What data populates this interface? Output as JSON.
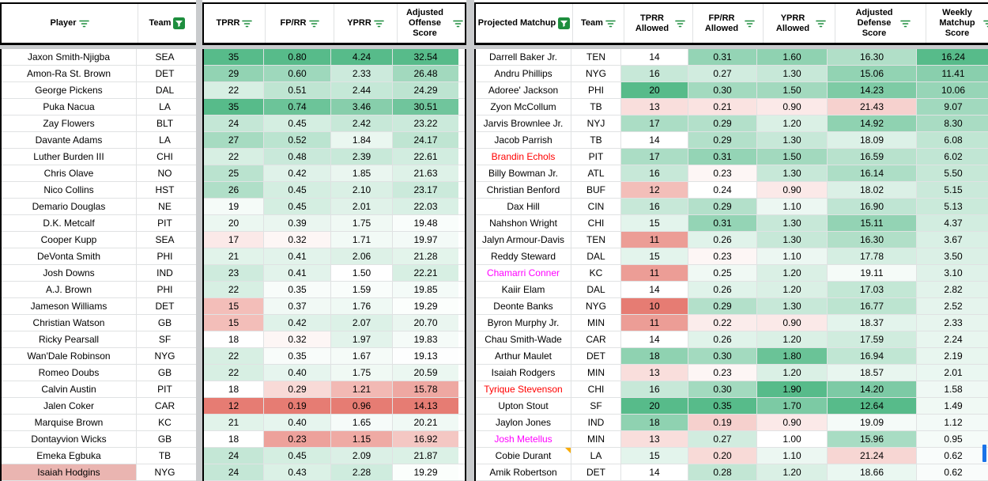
{
  "app": {
    "kind": "spreadsheet-matchup-sheet"
  },
  "colors": {
    "scale_green": "#57bb8a",
    "scale_red": "#e67c73",
    "filter_green": "#1e8e3e",
    "grid": "#e0e2e3",
    "gutter": "#c9cbcd",
    "border": "#000000",
    "name_red": "#ff0000",
    "name_magenta": "#ff00ff",
    "hodgins_bg": "#eab5b1",
    "note_marker": "#f9ab00",
    "selection_blue": "#1a73e8"
  },
  "columns": {
    "player": {
      "label": "Player",
      "filter": "default"
    },
    "team_off": {
      "label": "Team",
      "filter": "active"
    },
    "tprr": {
      "label": "TPRR",
      "filter": "default",
      "scale": {
        "min": 12,
        "mid": 18,
        "max": 35
      }
    },
    "fprr": {
      "label": "FP/RR",
      "filter": "default",
      "scale": {
        "min": 0.19,
        "mid": 0.33,
        "max": 0.8
      }
    },
    "yprr": {
      "label": "YPRR",
      "filter": "default",
      "scale": {
        "min": 0.96,
        "mid": 1.5,
        "max": 4.24
      }
    },
    "aos": {
      "label": "Adjusted Offense Score",
      "filter": "default",
      "scale": {
        "min": 14.13,
        "mid": 19.0,
        "max": 32.54
      }
    },
    "matchup": {
      "label": "Projected Matchup",
      "filter": "active"
    },
    "team_def": {
      "label": "Team",
      "filter": "default"
    },
    "tprr_a": {
      "label": "TPRR Allowed",
      "filter": "default",
      "scale": {
        "min": 10,
        "mid": 14,
        "max": 20
      }
    },
    "fprr_a": {
      "label": "FP/RR Allowed",
      "filter": "default",
      "scale": {
        "min": 0.1,
        "mid": 0.24,
        "max": 0.35
      }
    },
    "yprr_a": {
      "label": "YPRR Allowed",
      "filter": "default",
      "scale": {
        "min": 0.4,
        "mid": 1.0,
        "max": 1.9
      }
    },
    "ads": {
      "label": "Adjusted Defense Score",
      "filter": "default",
      "scale": {
        "min": 12.64,
        "mid": 19.5,
        "max": 25,
        "invert": true
      }
    },
    "weekly": {
      "label": "Weekly Matchup Score",
      "filter": "default",
      "scale": {
        "min": 0,
        "mid": 0,
        "max": 16.24
      }
    }
  },
  "offense_rows": [
    {
      "player": "Jaxon Smith-Njigba",
      "team": "SEA",
      "tprr": "35",
      "fprr": "0.80",
      "yprr": "4.24",
      "aos": "32.54"
    },
    {
      "player": "Amon-Ra St. Brown",
      "team": "DET",
      "tprr": "29",
      "fprr": "0.60",
      "yprr": "2.33",
      "aos": "26.48"
    },
    {
      "player": "George Pickens",
      "team": "DAL",
      "tprr": "22",
      "fprr": "0.51",
      "yprr": "2.44",
      "aos": "24.29"
    },
    {
      "player": "Puka Nacua",
      "team": "LA",
      "tprr": "35",
      "fprr": "0.74",
      "yprr": "3.46",
      "aos": "30.51"
    },
    {
      "player": "Zay Flowers",
      "team": "BLT",
      "tprr": "24",
      "fprr": "0.45",
      "yprr": "2.42",
      "aos": "23.22"
    },
    {
      "player": "Davante Adams",
      "team": "LA",
      "tprr": "27",
      "fprr": "0.52",
      "yprr": "1.84",
      "aos": "24.17"
    },
    {
      "player": "Luther Burden III",
      "team": "CHI",
      "tprr": "22",
      "fprr": "0.48",
      "yprr": "2.39",
      "aos": "22.61"
    },
    {
      "player": "Chris Olave",
      "team": "NO",
      "tprr": "25",
      "fprr": "0.42",
      "yprr": "1.85",
      "aos": "21.63"
    },
    {
      "player": "Nico Collins",
      "team": "HST",
      "tprr": "26",
      "fprr": "0.45",
      "yprr": "2.10",
      "aos": "23.17"
    },
    {
      "player": "Demario Douglas",
      "team": "NE",
      "tprr": "19",
      "fprr": "0.45",
      "yprr": "2.01",
      "aos": "22.03"
    },
    {
      "player": "D.K. Metcalf",
      "team": "PIT",
      "tprr": "20",
      "fprr": "0.39",
      "yprr": "1.75",
      "aos": "19.48"
    },
    {
      "player": "Cooper Kupp",
      "team": "SEA",
      "tprr": "17",
      "fprr": "0.32",
      "yprr": "1.71",
      "aos": "19.97"
    },
    {
      "player": "DeVonta Smith",
      "team": "PHI",
      "tprr": "21",
      "fprr": "0.41",
      "yprr": "2.06",
      "aos": "21.28"
    },
    {
      "player": "Josh Downs",
      "team": "IND",
      "tprr": "23",
      "fprr": "0.41",
      "yprr": "1.50",
      "aos": "22.21"
    },
    {
      "player": "A.J. Brown",
      "team": "PHI",
      "tprr": "22",
      "fprr": "0.35",
      "yprr": "1.59",
      "aos": "19.85"
    },
    {
      "player": "Jameson Williams",
      "team": "DET",
      "tprr": "15",
      "fprr": "0.37",
      "yprr": "1.76",
      "aos": "19.29"
    },
    {
      "player": "Christian Watson",
      "team": "GB",
      "tprr": "15",
      "fprr": "0.42",
      "yprr": "2.07",
      "aos": "20.70"
    },
    {
      "player": "Ricky Pearsall",
      "team": "SF",
      "tprr": "18",
      "fprr": "0.32",
      "yprr": "1.97",
      "aos": "19.83"
    },
    {
      "player": "Wan'Dale Robinson",
      "team": "NYG",
      "tprr": "22",
      "fprr": "0.35",
      "yprr": "1.67",
      "aos": "19.13"
    },
    {
      "player": "Romeo Doubs",
      "team": "GB",
      "tprr": "22",
      "fprr": "0.40",
      "yprr": "1.75",
      "aos": "20.59"
    },
    {
      "player": "Calvin Austin",
      "team": "PIT",
      "tprr": "18",
      "fprr": "0.29",
      "yprr": "1.21",
      "aos": "15.78"
    },
    {
      "player": "Jalen Coker",
      "team": "CAR",
      "tprr": "12",
      "fprr": "0.19",
      "yprr": "0.96",
      "aos": "14.13"
    },
    {
      "player": "Marquise Brown",
      "team": "KC",
      "tprr": "21",
      "fprr": "0.40",
      "yprr": "1.65",
      "aos": "20.21"
    },
    {
      "player": "Dontayvion Wicks",
      "team": "GB",
      "tprr": "18",
      "fprr": "0.23",
      "yprr": "1.15",
      "aos": "16.92"
    },
    {
      "player": "Emeka Egbuka",
      "team": "TB",
      "tprr": "24",
      "fprr": "0.45",
      "yprr": "2.09",
      "aos": "21.87"
    },
    {
      "player": "Isaiah Hodgins",
      "team": "NYG",
      "tprr": "24",
      "fprr": "0.43",
      "yprr": "2.28",
      "aos": "19.29",
      "player_bg": "#eab5b1"
    }
  ],
  "defense_rows": [
    {
      "matchup": "Darrell Baker Jr.",
      "team": "TEN",
      "tprr_a": "14",
      "fprr_a": "0.31",
      "yprr_a": "1.60",
      "ads": "16.30",
      "weekly": "16.24"
    },
    {
      "matchup": "Andru Phillips",
      "team": "NYG",
      "tprr_a": "16",
      "fprr_a": "0.27",
      "yprr_a": "1.30",
      "ads": "15.06",
      "weekly": "11.41"
    },
    {
      "matchup": "Adoree' Jackson",
      "team": "PHI",
      "tprr_a": "20",
      "fprr_a": "0.30",
      "yprr_a": "1.50",
      "ads": "14.23",
      "weekly": "10.06"
    },
    {
      "matchup": "Zyon McCollum",
      "team": "TB",
      "tprr_a": "13",
      "fprr_a": "0.21",
      "yprr_a": "0.90",
      "ads": "21.43",
      "weekly": "9.07"
    },
    {
      "matchup": "Jarvis Brownlee Jr.",
      "team": "NYJ",
      "tprr_a": "17",
      "fprr_a": "0.29",
      "yprr_a": "1.20",
      "ads": "14.92",
      "weekly": "8.30"
    },
    {
      "matchup": "Jacob Parrish",
      "team": "TB",
      "tprr_a": "14",
      "fprr_a": "0.29",
      "yprr_a": "1.30",
      "ads": "18.09",
      "weekly": "6.08"
    },
    {
      "matchup": "Brandin Echols",
      "team": "PIT",
      "tprr_a": "17",
      "fprr_a": "0.31",
      "yprr_a": "1.50",
      "ads": "16.59",
      "weekly": "6.02",
      "name_color": "#ff0000"
    },
    {
      "matchup": "Billy Bowman Jr.",
      "team": "ATL",
      "tprr_a": "16",
      "fprr_a": "0.23",
      "yprr_a": "1.30",
      "ads": "16.14",
      "weekly": "5.50"
    },
    {
      "matchup": "Christian Benford",
      "team": "BUF",
      "tprr_a": "12",
      "fprr_a": "0.24",
      "yprr_a": "0.90",
      "ads": "18.02",
      "weekly": "5.15"
    },
    {
      "matchup": "Dax Hill",
      "team": "CIN",
      "tprr_a": "16",
      "fprr_a": "0.29",
      "yprr_a": "1.10",
      "ads": "16.90",
      "weekly": "5.13"
    },
    {
      "matchup": "Nahshon Wright",
      "team": "CHI",
      "tprr_a": "15",
      "fprr_a": "0.31",
      "yprr_a": "1.30",
      "ads": "15.11",
      "weekly": "4.37"
    },
    {
      "matchup": "Jalyn Armour-Davis",
      "team": "TEN",
      "tprr_a": "11",
      "fprr_a": "0.26",
      "yprr_a": "1.30",
      "ads": "16.30",
      "weekly": "3.67"
    },
    {
      "matchup": "Reddy Steward",
      "team": "DAL",
      "tprr_a": "15",
      "fprr_a": "0.23",
      "yprr_a": "1.10",
      "ads": "17.78",
      "weekly": "3.50"
    },
    {
      "matchup": "Chamarri Conner",
      "team": "KC",
      "tprr_a": "11",
      "fprr_a": "0.25",
      "yprr_a": "1.20",
      "ads": "19.11",
      "weekly": "3.10",
      "name_color": "#ff00ff"
    },
    {
      "matchup": "Kaiir Elam",
      "team": "DAL",
      "tprr_a": "14",
      "fprr_a": "0.26",
      "yprr_a": "1.20",
      "ads": "17.03",
      "weekly": "2.82"
    },
    {
      "matchup": "Deonte Banks",
      "team": "NYG",
      "tprr_a": "10",
      "fprr_a": "0.29",
      "yprr_a": "1.30",
      "ads": "16.77",
      "weekly": "2.52"
    },
    {
      "matchup": "Byron Murphy Jr.",
      "team": "MIN",
      "tprr_a": "11",
      "fprr_a": "0.22",
      "yprr_a": "0.90",
      "ads": "18.37",
      "weekly": "2.33"
    },
    {
      "matchup": "Chau Smith-Wade",
      "team": "CAR",
      "tprr_a": "14",
      "fprr_a": "0.26",
      "yprr_a": "1.20",
      "ads": "17.59",
      "weekly": "2.24"
    },
    {
      "matchup": "Arthur Maulet",
      "team": "DET",
      "tprr_a": "18",
      "fprr_a": "0.30",
      "yprr_a": "1.80",
      "ads": "16.94",
      "weekly": "2.19"
    },
    {
      "matchup": "Isaiah Rodgers",
      "team": "MIN",
      "tprr_a": "13",
      "fprr_a": "0.23",
      "yprr_a": "1.20",
      "ads": "18.57",
      "weekly": "2.01"
    },
    {
      "matchup": "Tyrique Stevenson",
      "team": "CHI",
      "tprr_a": "16",
      "fprr_a": "0.30",
      "yprr_a": "1.90",
      "ads": "14.20",
      "weekly": "1.58",
      "name_color": "#ff0000"
    },
    {
      "matchup": "Upton Stout",
      "team": "SF",
      "tprr_a": "20",
      "fprr_a": "0.35",
      "yprr_a": "1.70",
      "ads": "12.64",
      "weekly": "1.49"
    },
    {
      "matchup": "Jaylon Jones",
      "team": "IND",
      "tprr_a": "18",
      "fprr_a": "0.19",
      "yprr_a": "0.90",
      "ads": "19.09",
      "weekly": "1.12"
    },
    {
      "matchup": "Josh Metellus",
      "team": "MIN",
      "tprr_a": "13",
      "fprr_a": "0.27",
      "yprr_a": "1.00",
      "ads": "15.96",
      "weekly": "0.95",
      "name_color": "#ff00ff"
    },
    {
      "matchup": "Cobie Durant",
      "team": "LA",
      "tprr_a": "15",
      "fprr_a": "0.20",
      "yprr_a": "1.10",
      "ads": "21.24",
      "weekly": "0.62",
      "note": true
    },
    {
      "matchup": "Amik Robertson",
      "team": "DET",
      "tprr_a": "14",
      "fprr_a": "0.28",
      "yprr_a": "1.20",
      "ads": "18.66",
      "weekly": "0.62"
    }
  ]
}
